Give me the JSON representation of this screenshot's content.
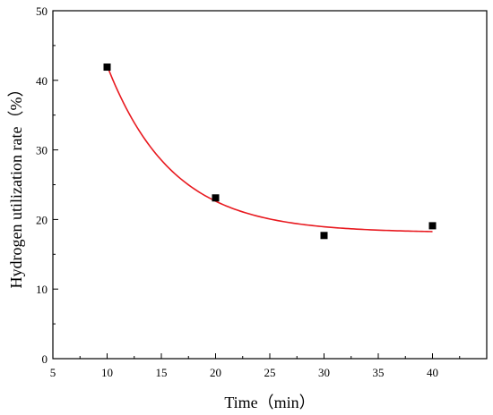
{
  "chart_data": {
    "type": "scatter",
    "title": "",
    "xlabel": "Time（min）",
    "ylabel": "Hydrogen utilization rate（%）",
    "xlim": [
      5,
      45
    ],
    "ylim": [
      0,
      50
    ],
    "x_ticks": [
      5,
      10,
      15,
      20,
      25,
      30,
      35,
      40
    ],
    "y_ticks": [
      0,
      10,
      20,
      30,
      40,
      50
    ],
    "grid": false,
    "legend": "none",
    "series": [
      {
        "type": "scatter",
        "marker": "square",
        "color": "#000000",
        "x": [
          10,
          20,
          30,
          40
        ],
        "y": [
          41.9,
          23.1,
          17.7,
          19.1
        ]
      },
      {
        "type": "line",
        "fit": "exponential",
        "color": "#e8191f",
        "x_range": [
          10,
          40
        ],
        "params": {
          "a": 18.1,
          "b": 24.0,
          "t": 6.0,
          "x0": 10
        }
      }
    ]
  }
}
